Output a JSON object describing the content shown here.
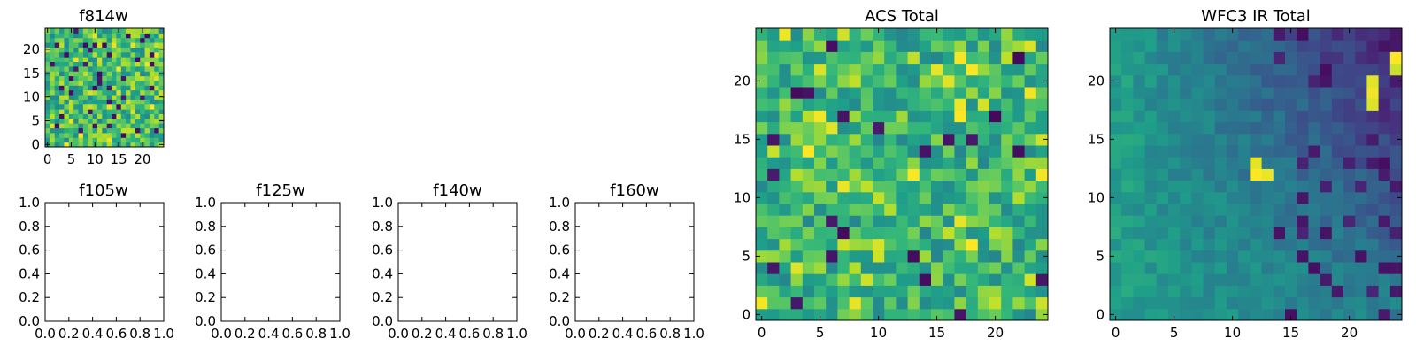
{
  "figure": {
    "colormap": "viridis"
  },
  "chart_data": [
    {
      "id": "f814w",
      "type": "heatmap",
      "title": "f814w",
      "grid_size": 25,
      "xlim": [
        -0.5,
        24.5
      ],
      "ylim": [
        -0.5,
        24.5
      ],
      "xticks": [
        0,
        5,
        10,
        15,
        20
      ],
      "yticks": [
        0,
        5,
        10,
        15,
        20
      ],
      "xtick_labels": [
        "0",
        "5",
        "10",
        "15",
        "20"
      ],
      "ytick_labels": [
        "0",
        "5",
        "10",
        "15",
        "20"
      ],
      "seed": 7,
      "pattern": "noise",
      "background_level": 0.68,
      "spread": 0.22,
      "dark_fraction": 0.05
    },
    {
      "id": "f105w",
      "type": "empty",
      "title": "f105w",
      "xlim": [
        0,
        1
      ],
      "ylim": [
        0,
        1
      ],
      "xticks": [
        0,
        0.2,
        0.4,
        0.6,
        0.8,
        1.0
      ],
      "yticks": [
        0,
        0.2,
        0.4,
        0.6,
        0.8,
        1.0
      ],
      "xtick_labels": [
        "0.0",
        "0.2",
        "0.4",
        "0.6",
        "0.8",
        "1.0"
      ],
      "ytick_labels": [
        "0.0",
        "0.2",
        "0.4",
        "0.6",
        "0.8",
        "1.0"
      ]
    },
    {
      "id": "f125w",
      "type": "empty",
      "title": "f125w",
      "xlim": [
        0,
        1
      ],
      "ylim": [
        0,
        1
      ],
      "xticks": [
        0,
        0.2,
        0.4,
        0.6,
        0.8,
        1.0
      ],
      "yticks": [
        0,
        0.2,
        0.4,
        0.6,
        0.8,
        1.0
      ],
      "xtick_labels": [
        "0.0",
        "0.2",
        "0.4",
        "0.6",
        "0.8",
        "1.0"
      ],
      "ytick_labels": [
        "0.0",
        "0.2",
        "0.4",
        "0.6",
        "0.8",
        "1.0"
      ]
    },
    {
      "id": "f140w",
      "type": "empty",
      "title": "f140w",
      "xlim": [
        0,
        1
      ],
      "ylim": [
        0,
        1
      ],
      "xticks": [
        0,
        0.2,
        0.4,
        0.6,
        0.8,
        1.0
      ],
      "yticks": [
        0,
        0.2,
        0.4,
        0.6,
        0.8,
        1.0
      ],
      "xtick_labels": [
        "0.0",
        "0.2",
        "0.4",
        "0.6",
        "0.8",
        "1.0"
      ],
      "ytick_labels": [
        "0.0",
        "0.2",
        "0.4",
        "0.6",
        "0.8",
        "1.0"
      ]
    },
    {
      "id": "f160w",
      "type": "empty",
      "title": "f160w",
      "xlim": [
        0,
        1
      ],
      "ylim": [
        0,
        1
      ],
      "xticks": [
        0,
        0.2,
        0.4,
        0.6,
        0.8,
        1.0
      ],
      "yticks": [
        0,
        0.2,
        0.4,
        0.6,
        0.8,
        1.0
      ],
      "xtick_labels": [
        "0.0",
        "0.2",
        "0.4",
        "0.6",
        "0.8",
        "1.0"
      ],
      "ytick_labels": [
        "0.0",
        "0.2",
        "0.4",
        "0.6",
        "0.8",
        "1.0"
      ]
    },
    {
      "id": "acs-total",
      "type": "heatmap",
      "title": "ACS Total",
      "grid_size": 25,
      "xlim": [
        -0.5,
        24.5
      ],
      "ylim": [
        -0.5,
        24.5
      ],
      "xticks": [
        0,
        5,
        10,
        15,
        20
      ],
      "yticks": [
        0,
        5,
        10,
        15,
        20
      ],
      "xtick_labels": [
        "0",
        "5",
        "10",
        "15",
        "20"
      ],
      "ytick_labels": [
        "0",
        "5",
        "10",
        "15",
        "20"
      ],
      "seed": 21,
      "pattern": "noise",
      "background_level": 0.66,
      "spread": 0.2,
      "dark_fraction": 0.04
    },
    {
      "id": "wfc3-ir-total",
      "type": "heatmap",
      "title": "WFC3 IR Total",
      "grid_size": 25,
      "xlim": [
        -0.5,
        24.5
      ],
      "ylim": [
        -0.5,
        24.5
      ],
      "xticks": [
        0,
        5,
        10,
        15,
        20
      ],
      "yticks": [
        0,
        5,
        10,
        15,
        20
      ],
      "xtick_labels": [
        "0",
        "5",
        "10",
        "15",
        "20"
      ],
      "ytick_labels": [
        "0",
        "5",
        "10",
        "15",
        "20"
      ],
      "seed": 53,
      "pattern": "gradient",
      "background_level": 0.5,
      "spread": 0.06,
      "dark_fraction": 0.0,
      "hotspots": [
        {
          "x": 12,
          "y": 12,
          "value": 1.0
        },
        {
          "x": 13,
          "y": 12,
          "value": 0.97
        },
        {
          "x": 12,
          "y": 13,
          "value": 0.96
        },
        {
          "x": 22,
          "y": 18,
          "value": 0.95
        },
        {
          "x": 22,
          "y": 19,
          "value": 0.98
        },
        {
          "x": 22,
          "y": 20,
          "value": 0.96
        },
        {
          "x": 24,
          "y": 22,
          "value": 1.0
        },
        {
          "x": 24,
          "y": 21,
          "value": 0.92
        }
      ]
    }
  ]
}
